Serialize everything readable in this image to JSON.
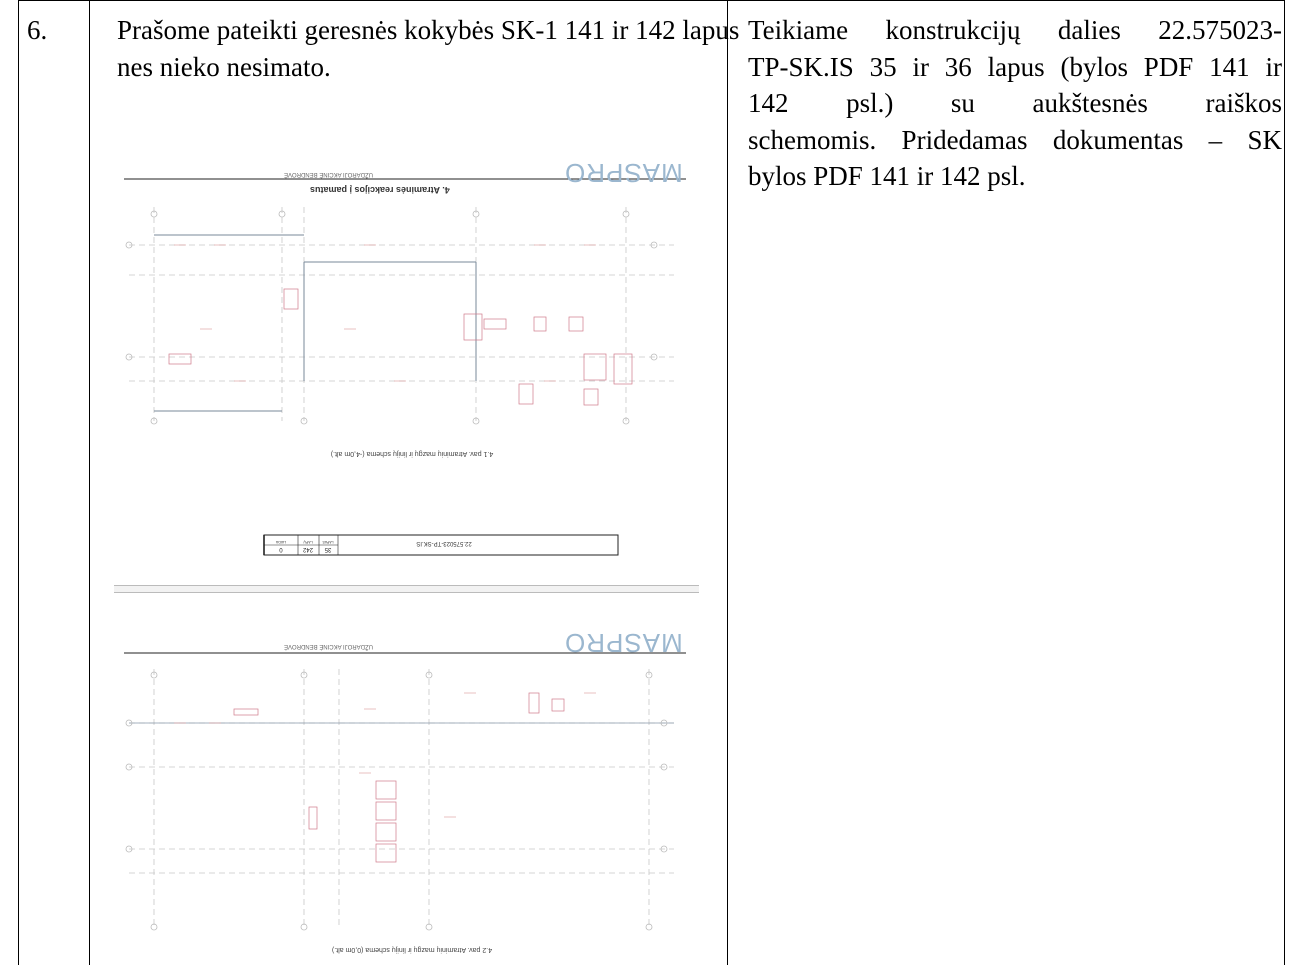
{
  "row": {
    "number": "6.",
    "question": "Prašome pateikti geresnės kokybės SK-1 141 ir 142 lapus nes nieko nesimato.",
    "answer_lines": [
      "Teikiame konstrukcijų dalies 22.575023-",
      "TP-SK.IS 35 ir 36 lapus (bylos PDF 141 ir",
      "142 psl.) su aukštesnės raiškos",
      "schemomis. Pridedamas dokumentas – SK"
    ],
    "answer_last": "bylos PDF 141 ir 142 psl."
  },
  "sheet1": {
    "logo": "MASPRO",
    "company": "UŽDAROJI AKCINĖ BENDROVĖ",
    "section_title": "4. Atraminės reakcijos į pamatus",
    "caption": "4.1 pav. Atraminių mazgų ir linijų schema (-4,0m alt.)",
    "stamp_code": "22.575023-TP-SK.IS",
    "stamp_headers": [
      "LAPAS",
      "LAPŲ",
      "LAIDA"
    ],
    "stamp_values": [
      "35",
      "242",
      "0"
    ]
  },
  "sheet2": {
    "logo": "MASPRO",
    "company": "UŽDAROJI AKCINĖ BENDROVĖ",
    "caption": "4.2 pav. Atraminių mazgų ir linijų schema (0,0m alt.)"
  }
}
